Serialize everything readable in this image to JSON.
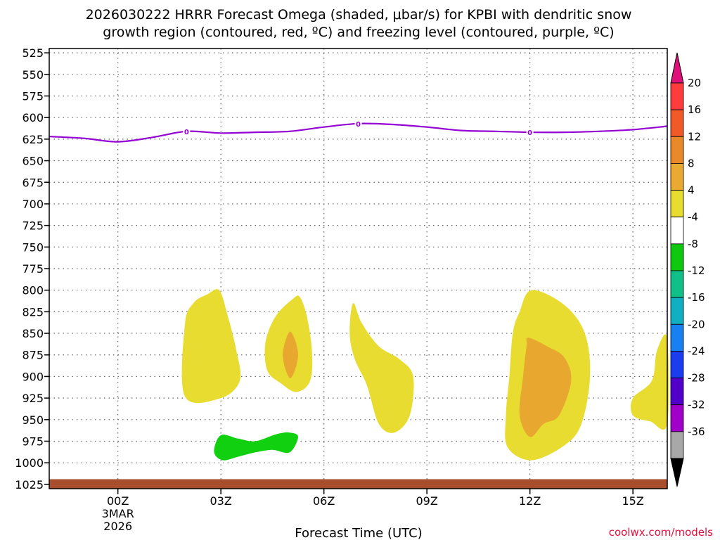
{
  "chart_data": {
    "type": "contour",
    "title_line1": "2026030222 HRRR Forecast Omega (shaded, μbar/s) for KPBI with dendritic snow",
    "title_line2": "growth region (contoured, red, ºC) and freezing level (contoured, purple, ºC)",
    "xlabel": "Forecast Time (UTC)",
    "x_range_hours": [
      -2,
      16
    ],
    "x_ticks": [
      {
        "hour": 0,
        "label": "00Z",
        "sub1": "3MAR",
        "sub2": "2026"
      },
      {
        "hour": 3,
        "label": "03Z"
      },
      {
        "hour": 6,
        "label": "06Z"
      },
      {
        "hour": 9,
        "label": "09Z"
      },
      {
        "hour": 12,
        "label": "12Z"
      },
      {
        "hour": 15,
        "label": "15Z"
      }
    ],
    "y_ticks_hpa": [
      525,
      550,
      575,
      600,
      625,
      650,
      675,
      700,
      725,
      750,
      775,
      800,
      825,
      850,
      875,
      900,
      925,
      950,
      975,
      1000,
      1025
    ],
    "y_range_hpa": [
      520,
      1030
    ],
    "freezing_level": {
      "label": "0",
      "label_hours": [
        2,
        7,
        12
      ],
      "points": [
        [
          -2,
          622
        ],
        [
          -1,
          624
        ],
        [
          0,
          628
        ],
        [
          1,
          623
        ],
        [
          2,
          616
        ],
        [
          3,
          618
        ],
        [
          4,
          617
        ],
        [
          5,
          616
        ],
        [
          6,
          611
        ],
        [
          7,
          607
        ],
        [
          8,
          608
        ],
        [
          9,
          611
        ],
        [
          10,
          615
        ],
        [
          11,
          616
        ],
        [
          12,
          617
        ],
        [
          13,
          617
        ],
        [
          14,
          616
        ],
        [
          15,
          614
        ],
        [
          16,
          610
        ]
      ]
    },
    "omega_regions": [
      {
        "level": "4 to 8",
        "color": "#e8dc30",
        "points": [
          [
            1.95,
            840
          ],
          [
            2.2,
            815
          ],
          [
            2.6,
            805
          ],
          [
            2.95,
            800
          ],
          [
            3.2,
            830
          ],
          [
            3.45,
            870
          ],
          [
            3.55,
            905
          ],
          [
            3.0,
            925
          ],
          [
            1.95,
            923
          ]
        ]
      },
      {
        "level": "4 to 8",
        "color": "#e8dc30",
        "points": [
          [
            5.3,
            808
          ],
          [
            5.5,
            830
          ],
          [
            5.65,
            870
          ],
          [
            5.6,
            905
          ],
          [
            5.2,
            918
          ],
          [
            4.75,
            908
          ],
          [
            4.35,
            893
          ],
          [
            4.3,
            860
          ],
          [
            4.6,
            830
          ],
          [
            5.1,
            810
          ]
        ]
      },
      {
        "level": "8 to 12",
        "color": "#e8a830",
        "points": [
          [
            5.02,
            848
          ],
          [
            5.25,
            875
          ],
          [
            5.02,
            902
          ],
          [
            4.8,
            875
          ]
        ]
      },
      {
        "level": "4 to 8",
        "color": "#e8dc30",
        "points": [
          [
            6.85,
            815
          ],
          [
            7.1,
            838
          ],
          [
            7.6,
            865
          ],
          [
            8.2,
            880
          ],
          [
            8.6,
            900
          ],
          [
            8.5,
            945
          ],
          [
            8.05,
            965
          ],
          [
            7.6,
            955
          ],
          [
            7.25,
            910
          ],
          [
            6.9,
            880
          ],
          [
            6.75,
            850
          ]
        ]
      },
      {
        "level": "4 to 8",
        "color": "#e8dc30",
        "points": [
          [
            12.05,
            800
          ],
          [
            13.0,
            817
          ],
          [
            13.6,
            850
          ],
          [
            13.75,
            900
          ],
          [
            13.5,
            955
          ],
          [
            13.0,
            980
          ],
          [
            12.05,
            997
          ],
          [
            11.35,
            982
          ],
          [
            11.3,
            945
          ],
          [
            11.4,
            900
          ],
          [
            11.5,
            850
          ],
          [
            11.7,
            825
          ]
        ]
      },
      {
        "level": "8 to 12",
        "color": "#e8a830",
        "points": [
          [
            11.95,
            855
          ],
          [
            12.5,
            865
          ],
          [
            13.0,
            878
          ],
          [
            13.2,
            905
          ],
          [
            12.85,
            945
          ],
          [
            12.4,
            955
          ],
          [
            12.0,
            970
          ],
          [
            11.7,
            945
          ],
          [
            11.8,
            900
          ],
          [
            11.9,
            865
          ]
        ]
      },
      {
        "level": "4 to 8",
        "color": "#e8dc30",
        "points": [
          [
            16.0,
            856
          ],
          [
            15.7,
            870
          ],
          [
            15.55,
            905
          ],
          [
            15.0,
            925
          ],
          [
            15.0,
            945
          ],
          [
            15.5,
            952
          ],
          [
            16.0,
            955
          ]
        ]
      },
      {
        "level": "-4 to -8",
        "color": "#10d010",
        "points": [
          [
            3.0,
            968
          ],
          [
            3.5,
            972
          ],
          [
            4.0,
            975
          ],
          [
            4.6,
            967
          ],
          [
            5.0,
            965
          ],
          [
            5.25,
            970
          ],
          [
            5.0,
            988
          ],
          [
            4.5,
            985
          ],
          [
            4.0,
            988
          ],
          [
            3.5,
            993
          ],
          [
            3.05,
            997
          ],
          [
            2.8,
            987
          ]
        ]
      }
    ],
    "ground": {
      "top_hpa": 1019,
      "color": "#a84e2c"
    },
    "colorbar": {
      "levels": [
        "20",
        "16",
        "12",
        "8",
        "4",
        "-4",
        "-8",
        "-12",
        "-16",
        "-20",
        "-24",
        "-28",
        "-32",
        "-36"
      ],
      "colors": [
        "#ff3c3c",
        "#f05a28",
        "#e8892a",
        "#e8aa30",
        "#e8dc30",
        "#ffffff",
        "#10c810",
        "#10c088",
        "#10b0c0",
        "#1880f0",
        "#1c3cf0",
        "#5000c8",
        "#a000c8",
        "#a8a8a8"
      ],
      "top_color": "#e0107a",
      "bottom_color": "#000000"
    }
  },
  "credit": "coolwx.com/models"
}
